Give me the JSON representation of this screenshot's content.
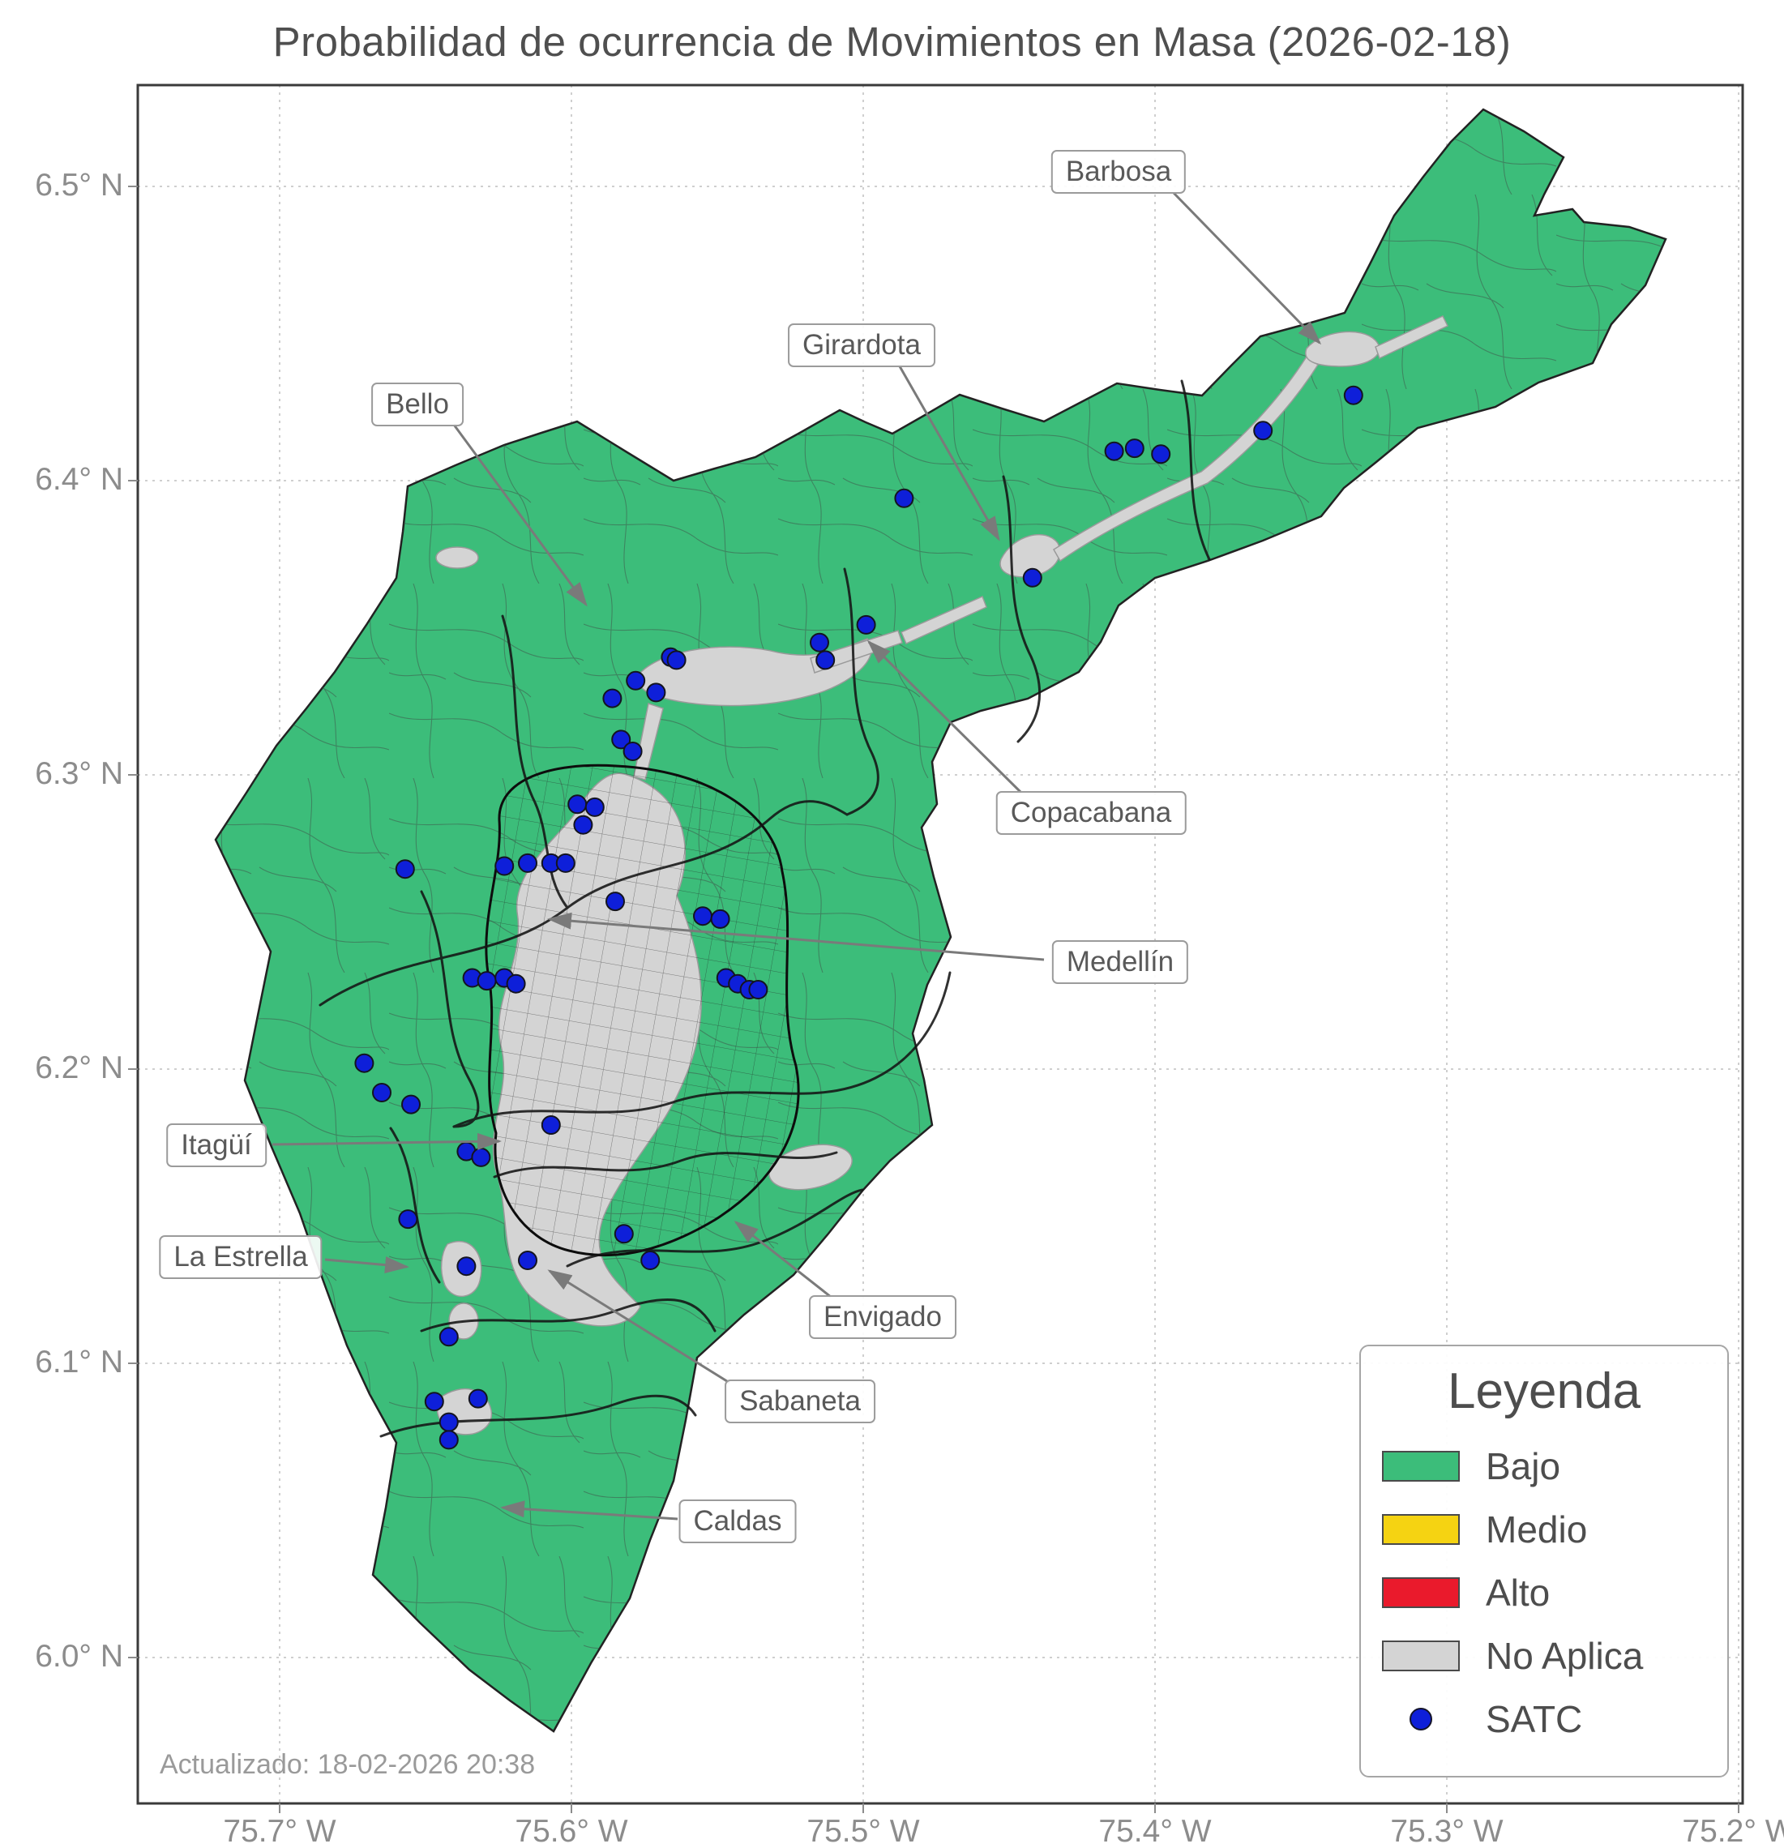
{
  "title": "Probabilidad de ocurrencia de Movimientos en Masa (2026-02-18)",
  "updated_text": "Actualizado: 18-02-2026 20:38",
  "axes": {
    "x_ticks": [
      "75.7° W",
      "75.6° W",
      "75.5° W",
      "75.4° W",
      "75.3° W",
      "75.2° W"
    ],
    "y_ticks": [
      "6.5° N",
      "6.4° N",
      "6.3° N",
      "6.2° N",
      "6.1° N",
      "6.0° N"
    ]
  },
  "legend": {
    "title": "Leyenda",
    "items": [
      {
        "label": "Bajo",
        "color": "#3cbd7a",
        "type": "patch"
      },
      {
        "label": "Medio",
        "color": "#f5d312",
        "type": "patch"
      },
      {
        "label": "Alto",
        "color": "#ea1a2c",
        "type": "patch"
      },
      {
        "label": "No Aplica",
        "color": "#d4d4d4",
        "type": "patch"
      },
      {
        "label": "SATC",
        "color": "#0e1fd9",
        "type": "point"
      }
    ]
  },
  "annotations": [
    {
      "label": "Barbosa"
    },
    {
      "label": "Girardota"
    },
    {
      "label": "Bello"
    },
    {
      "label": "Copacabana"
    },
    {
      "label": "Medellín"
    },
    {
      "label": "Itagüí"
    },
    {
      "label": "La Estrella"
    },
    {
      "label": "Envigado"
    },
    {
      "label": "Sabaneta"
    },
    {
      "label": "Caldas"
    }
  ],
  "chart_data": {
    "type": "map",
    "subtype": "choropleth-risk",
    "date_shown": "2026-02-18",
    "lon_ticks_w": [
      75.7,
      75.6,
      75.5,
      75.4,
      75.3,
      75.2
    ],
    "lat_ticks_n": [
      6.5,
      6.4,
      6.3,
      6.2,
      6.1,
      6.0
    ],
    "risk_levels": [
      "Bajo",
      "Medio",
      "Alto",
      "No Aplica"
    ],
    "dominant_level": "Bajo",
    "municipalities_labeled": [
      "Barbosa",
      "Girardota",
      "Bello",
      "Copacabana",
      "Medellín",
      "Itagüí",
      "La Estrella",
      "Envigado",
      "Sabaneta",
      "Caldas"
    ],
    "satc_points": [
      [
        75.486,
        6.394
      ],
      [
        75.442,
        6.367
      ],
      [
        75.414,
        6.41
      ],
      [
        75.407,
        6.411
      ],
      [
        75.398,
        6.409
      ],
      [
        75.363,
        6.417
      ],
      [
        75.332,
        6.429
      ],
      [
        75.515,
        6.345
      ],
      [
        75.513,
        6.339
      ],
      [
        75.499,
        6.351
      ],
      [
        75.566,
        6.34
      ],
      [
        75.564,
        6.339
      ],
      [
        75.578,
        6.332
      ],
      [
        75.571,
        6.328
      ],
      [
        75.586,
        6.326
      ],
      [
        75.583,
        6.312
      ],
      [
        75.579,
        6.308
      ],
      [
        75.598,
        6.29
      ],
      [
        75.592,
        6.289
      ],
      [
        75.596,
        6.283
      ],
      [
        75.623,
        6.269
      ],
      [
        75.615,
        6.27
      ],
      [
        75.607,
        6.27
      ],
      [
        75.602,
        6.27
      ],
      [
        75.657,
        6.268
      ],
      [
        75.585,
        6.257
      ],
      [
        75.555,
        6.252
      ],
      [
        75.549,
        6.251
      ],
      [
        75.547,
        6.231
      ],
      [
        75.543,
        6.229
      ],
      [
        75.539,
        6.227
      ],
      [
        75.536,
        6.227
      ],
      [
        75.634,
        6.231
      ],
      [
        75.629,
        6.23
      ],
      [
        75.623,
        6.231
      ],
      [
        75.619,
        6.229
      ],
      [
        75.671,
        6.202
      ],
      [
        75.665,
        6.192
      ],
      [
        75.655,
        6.188
      ],
      [
        75.607,
        6.181
      ],
      [
        75.636,
        6.172
      ],
      [
        75.631,
        6.17
      ],
      [
        75.656,
        6.149
      ],
      [
        75.582,
        6.144
      ],
      [
        75.573,
        6.135
      ],
      [
        75.615,
        6.135
      ],
      [
        75.636,
        6.133
      ],
      [
        75.642,
        6.109
      ],
      [
        75.647,
        6.087
      ],
      [
        75.632,
        6.088
      ],
      [
        75.642,
        6.08
      ],
      [
        75.642,
        6.074
      ]
    ]
  }
}
